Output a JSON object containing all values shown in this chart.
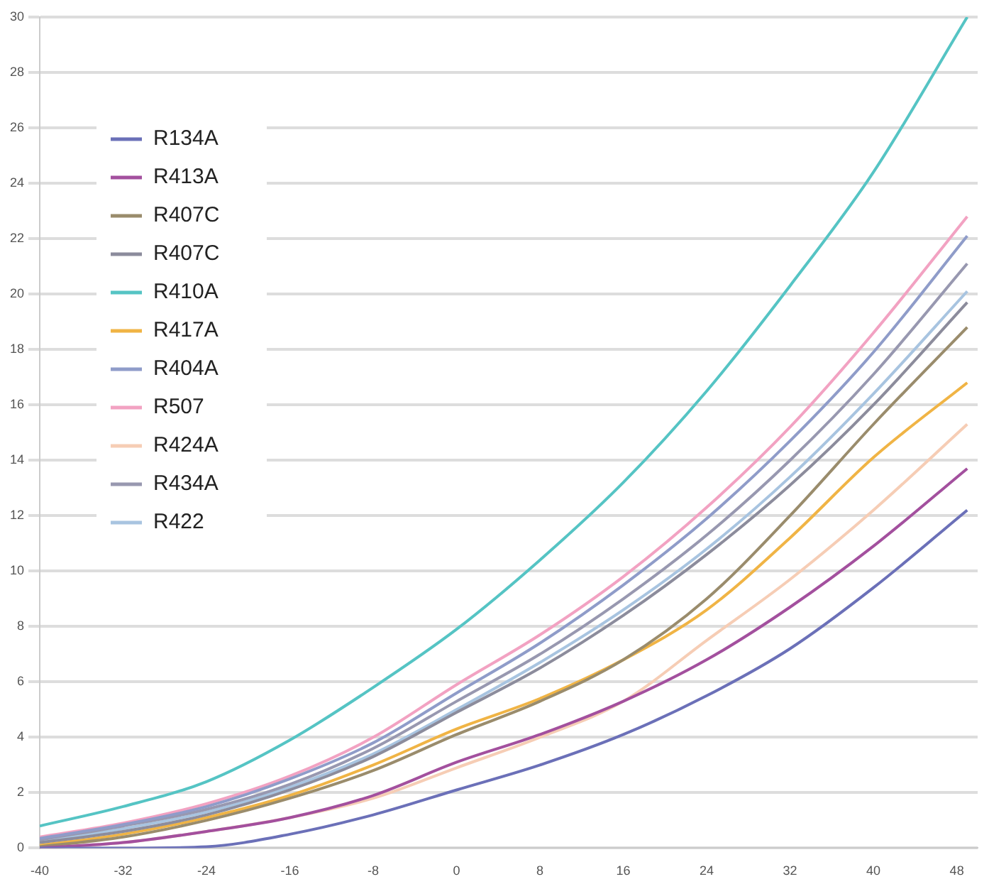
{
  "chart_data": {
    "type": "line",
    "x": [
      -40,
      -32,
      -24,
      -16,
      -8,
      0,
      8,
      16,
      24,
      32,
      40,
      49
    ],
    "series": [
      {
        "name": "R134A",
        "color": "#6b70b8",
        "values": [
          0,
          0,
          0.05,
          0.5,
          1.2,
          2.1,
          3.0,
          4.1,
          5.5,
          7.2,
          9.4,
          12.2
        ]
      },
      {
        "name": "R413A",
        "color": "#a3509e",
        "values": [
          0,
          0.2,
          0.6,
          1.1,
          1.9,
          3.1,
          4.1,
          5.3,
          6.8,
          8.7,
          10.9,
          13.7
        ]
      },
      {
        "name": "R407C",
        "color": "#9a8c6c",
        "values": [
          0.05,
          0.4,
          1.0,
          1.8,
          2.8,
          4.1,
          5.3,
          6.8,
          9.0,
          12.0,
          15.3,
          18.8
        ]
      },
      {
        "name": "R407C",
        "color": "#8c8c9c",
        "values": [
          0.2,
          0.6,
          1.2,
          2.1,
          3.3,
          4.9,
          6.5,
          8.4,
          10.6,
          13.1,
          16.0,
          19.7
        ]
      },
      {
        "name": "R410A",
        "color": "#55c4c4",
        "values": [
          0.8,
          1.5,
          2.4,
          3.9,
          5.8,
          7.9,
          10.4,
          13.2,
          16.5,
          20.3,
          24.4,
          30
        ]
      },
      {
        "name": "R417A",
        "color": "#f0b445",
        "values": [
          0.1,
          0.5,
          1.1,
          1.9,
          3.0,
          4.3,
          5.4,
          6.8,
          8.6,
          11.2,
          14.1,
          16.8
        ]
      },
      {
        "name": "R404A",
        "color": "#8f9cc9",
        "values": [
          0.35,
          0.85,
          1.5,
          2.5,
          3.8,
          5.6,
          7.4,
          9.5,
          11.9,
          14.7,
          17.9,
          22.1
        ]
      },
      {
        "name": "R507",
        "color": "#f2a2c2",
        "values": [
          0.4,
          0.9,
          1.6,
          2.6,
          4.0,
          5.9,
          7.7,
          9.8,
          12.3,
          15.2,
          18.6,
          22.8
        ]
      },
      {
        "name": "R424A",
        "color": "#f6cdb5",
        "values": [
          0,
          0.2,
          0.6,
          1.1,
          1.8,
          2.9,
          4.0,
          5.3,
          7.5,
          9.7,
          12.2,
          15.3
        ]
      },
      {
        "name": "R434A",
        "color": "#9898b0",
        "values": [
          0.3,
          0.8,
          1.4,
          2.3,
          3.6,
          5.3,
          7.0,
          9.0,
          11.3,
          14.0,
          17.1,
          21.1
        ]
      },
      {
        "name": "R422",
        "color": "#a8c4e0",
        "values": [
          0.25,
          0.7,
          1.3,
          2.2,
          3.4,
          5.0,
          6.7,
          8.6,
          10.8,
          13.4,
          16.4,
          20.1
        ]
      }
    ],
    "xlim": [
      -40,
      50
    ],
    "xticks": [
      -40,
      -32,
      -24,
      -16,
      -8,
      0,
      8,
      16,
      24,
      32,
      40,
      48
    ],
    "ylim": [
      0,
      30
    ],
    "yticks": [
      0,
      2,
      4,
      6,
      8,
      10,
      12,
      14,
      16,
      18,
      20,
      22,
      24,
      26,
      28,
      30
    ],
    "grid": "y",
    "legend": "top left",
    "marker": "none",
    "line_style": "solid"
  }
}
